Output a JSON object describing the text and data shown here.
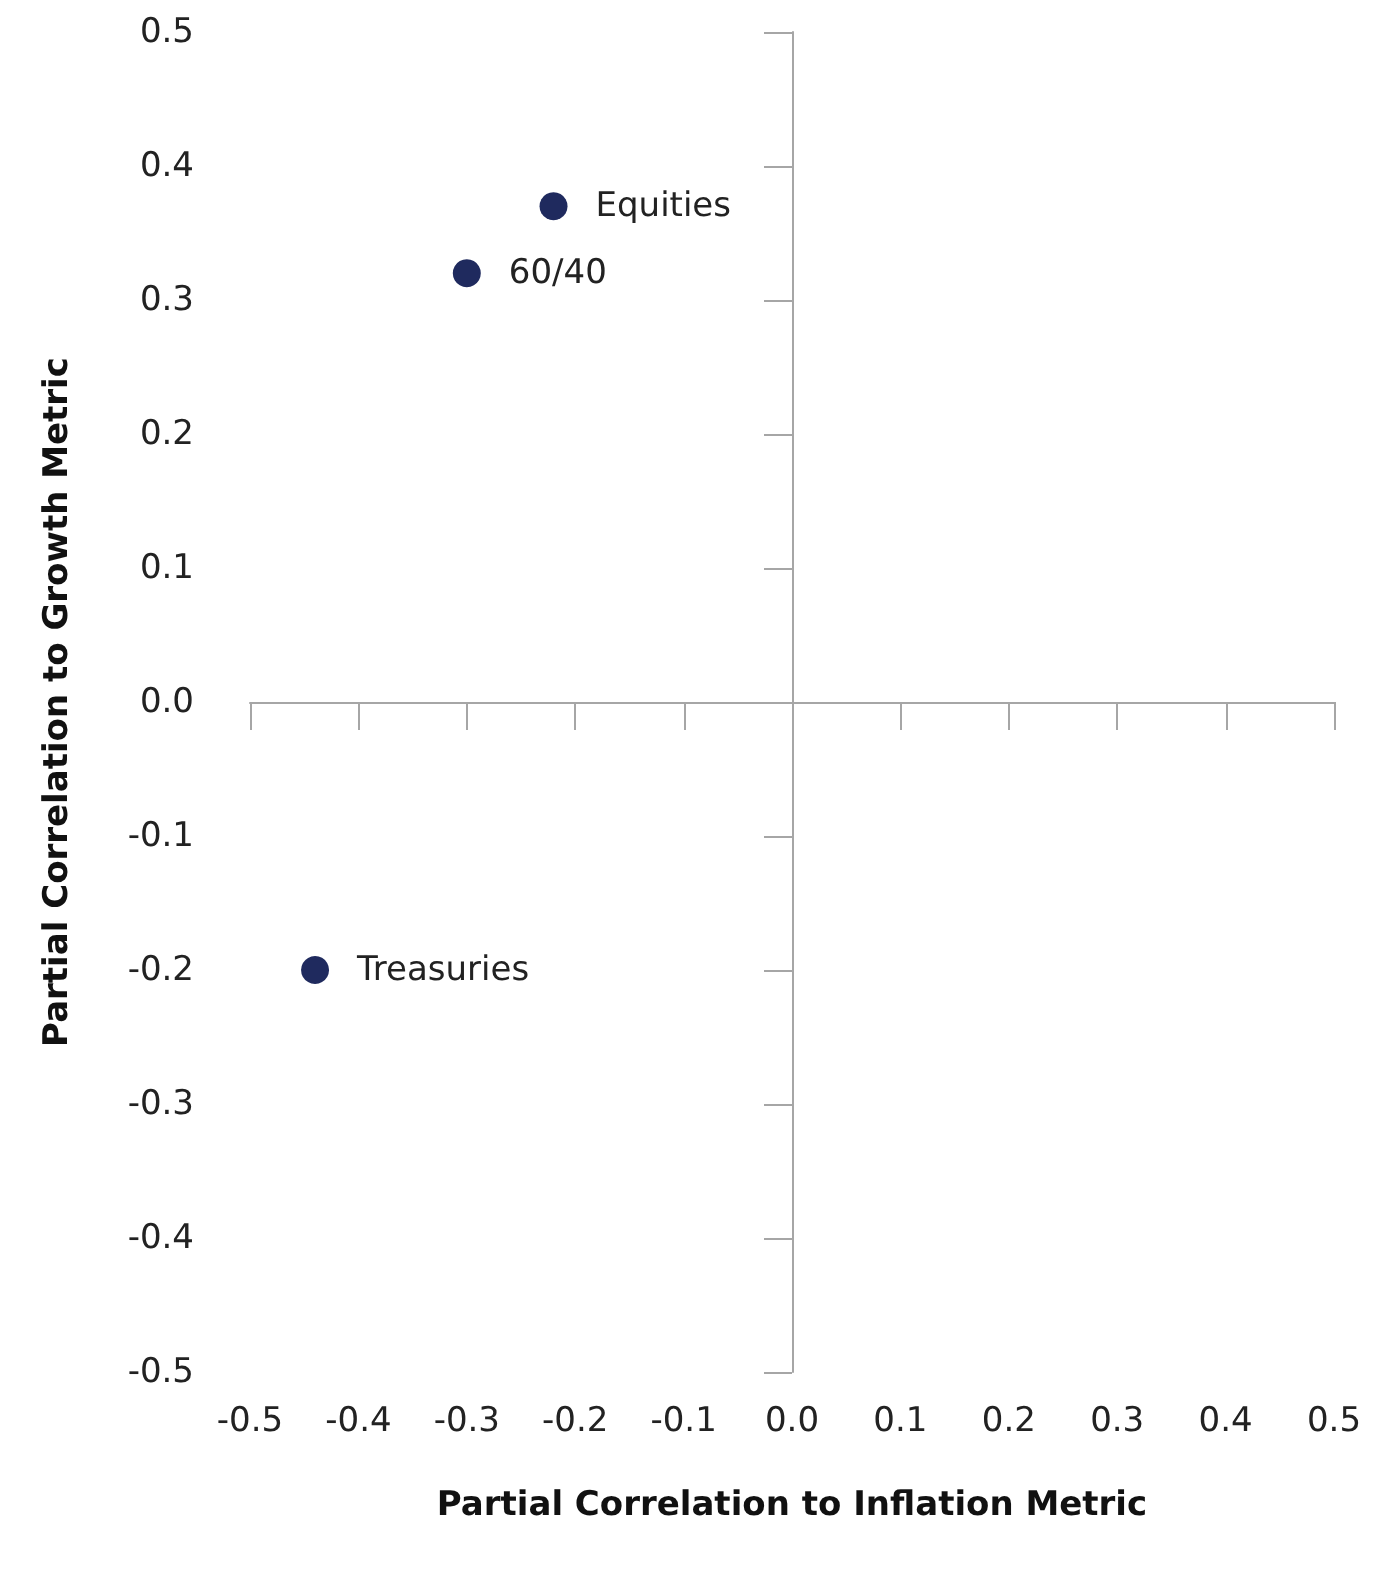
{
  "chart_data": {
    "type": "scatter",
    "xlabel": "Partial Correlation to Inflation Metric",
    "ylabel": "Partial Correlation to Growth Metric",
    "series": [
      {
        "name": "Equities",
        "color": "#1f2a5e",
        "x": [
          -0.22
        ],
        "values": [
          0.37
        ]
      },
      {
        "name": "60/40",
        "color": "#1f2a5e",
        "x": [
          -0.3
        ],
        "values": [
          0.32
        ]
      },
      {
        "name": "Treasuries",
        "color": "#1f2a5e",
        "x": [
          -0.44
        ],
        "values": [
          -0.2
        ]
      }
    ],
    "xlim": [
      -0.5,
      0.5
    ],
    "ylim": [
      -0.5,
      0.5
    ],
    "xticks": [
      {
        "value": -0.5,
        "label": "-0.5"
      },
      {
        "value": -0.4,
        "label": "-0.4"
      },
      {
        "value": -0.3,
        "label": "-0.3"
      },
      {
        "value": -0.2,
        "label": "-0.2"
      },
      {
        "value": -0.1,
        "label": "-0.1"
      },
      {
        "value": 0,
        "label": "0.0"
      },
      {
        "value": 0.1,
        "label": "0.1"
      },
      {
        "value": 0.2,
        "label": "0.2"
      },
      {
        "value": 0.3,
        "label": "0.3"
      },
      {
        "value": 0.4,
        "label": "0.4"
      },
      {
        "value": 0.5,
        "label": "0.5"
      }
    ],
    "yticks": [
      {
        "value": -0.5,
        "label": "-0.5"
      },
      {
        "value": -0.4,
        "label": "-0.4"
      },
      {
        "value": -0.3,
        "label": "-0.3"
      },
      {
        "value": -0.2,
        "label": "-0.2"
      },
      {
        "value": -0.1,
        "label": "-0.1"
      },
      {
        "value": 0,
        "label": "0.0"
      },
      {
        "value": 0.1,
        "label": "0.1"
      },
      {
        "value": 0.2,
        "label": "0.2"
      },
      {
        "value": 0.3,
        "label": "0.3"
      },
      {
        "value": 0.4,
        "label": "0.4"
      },
      {
        "value": 0.5,
        "label": "0.5"
      }
    ],
    "legend": false,
    "marker": "circle"
  }
}
